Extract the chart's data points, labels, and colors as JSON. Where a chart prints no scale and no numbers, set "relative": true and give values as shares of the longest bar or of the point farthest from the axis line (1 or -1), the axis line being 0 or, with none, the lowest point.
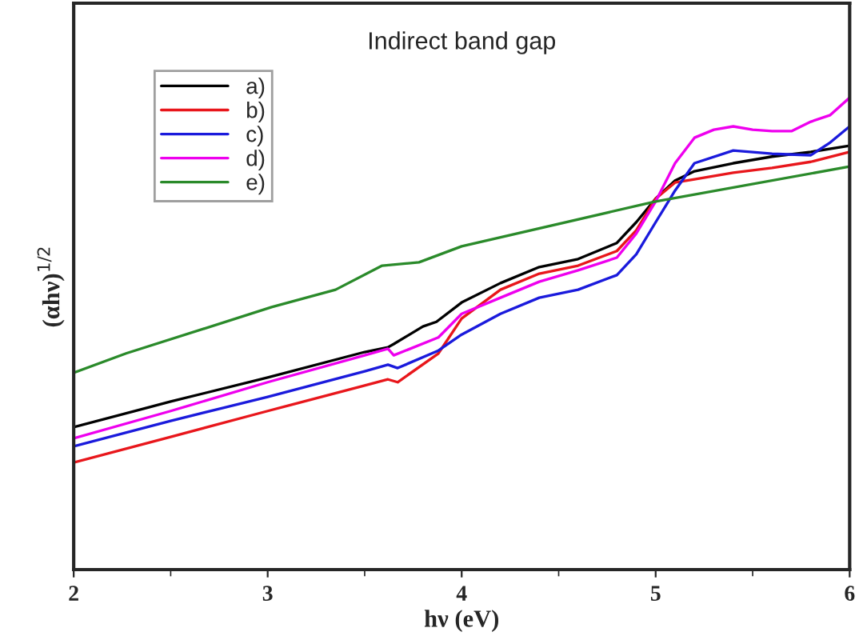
{
  "chart_data": {
    "type": "line",
    "title": "Indirect band gap",
    "xlabel": "hν (eV)",
    "ylabel": "(αhν)$^{1/2}$",
    "relative": true,
    "xlim": [
      2,
      6
    ],
    "xticks": [
      2,
      3,
      4,
      5,
      6
    ],
    "legend": "top left",
    "grid": false,
    "marker": "none",
    "line_style": "solid",
    "series": [
      {
        "name": "a)",
        "color": "#000000",
        "x": [
          2,
          2.5,
          3,
          3.5,
          3.62,
          3.65,
          3.8,
          3.87,
          4,
          4.2,
          4.4,
          4.6,
          4.8,
          4.9,
          5,
          5.1,
          5.2,
          5.4,
          5.6,
          5.8,
          6
        ],
        "values": [
          0.302,
          0.356,
          0.407,
          0.461,
          0.471,
          0.478,
          0.515,
          0.525,
          0.566,
          0.607,
          0.641,
          0.658,
          0.692,
          0.736,
          0.786,
          0.824,
          0.844,
          0.861,
          0.875,
          0.885,
          0.898
        ]
      },
      {
        "name": "b)",
        "color": "#e8161b",
        "x": [
          2,
          2.5,
          3,
          3.5,
          3.62,
          3.67,
          3.88,
          4,
          4.2,
          4.4,
          4.6,
          4.8,
          4.9,
          5,
          5.1,
          5.2,
          5.4,
          5.6,
          5.8,
          6
        ],
        "values": [
          0.227,
          0.281,
          0.336,
          0.39,
          0.403,
          0.397,
          0.458,
          0.532,
          0.593,
          0.627,
          0.644,
          0.675,
          0.719,
          0.786,
          0.82,
          0.827,
          0.841,
          0.851,
          0.864,
          0.885
        ]
      },
      {
        "name": "c)",
        "color": "#1a1adc",
        "x": [
          2,
          2.5,
          3,
          3.5,
          3.62,
          3.67,
          3.88,
          4,
          4.2,
          4.4,
          4.6,
          4.8,
          4.9,
          5,
          5.1,
          5.2,
          5.4,
          5.6,
          5.8,
          5.9,
          6
        ],
        "values": [
          0.261,
          0.315,
          0.366,
          0.42,
          0.434,
          0.427,
          0.464,
          0.498,
          0.542,
          0.576,
          0.593,
          0.624,
          0.668,
          0.736,
          0.803,
          0.861,
          0.888,
          0.881,
          0.878,
          0.905,
          0.939
        ]
      },
      {
        "name": "d)",
        "color": "#ee00ee",
        "x": [
          2,
          2.5,
          3,
          3.5,
          3.62,
          3.65,
          3.88,
          4,
          4.2,
          4.4,
          4.6,
          4.8,
          4.9,
          5,
          5.1,
          5.2,
          5.3,
          5.4,
          5.5,
          5.6,
          5.7,
          5.8,
          5.9,
          6
        ],
        "values": [
          0.278,
          0.336,
          0.397,
          0.454,
          0.468,
          0.454,
          0.492,
          0.542,
          0.576,
          0.61,
          0.634,
          0.661,
          0.712,
          0.78,
          0.861,
          0.915,
          0.932,
          0.939,
          0.932,
          0.929,
          0.929,
          0.949,
          0.963,
          1
        ]
      },
      {
        "name": "e)",
        "color": "#2a8a2a",
        "x": [
          2,
          2.27,
          3.02,
          3.35,
          3.59,
          3.78,
          4,
          5,
          6
        ],
        "values": [
          0.417,
          0.458,
          0.556,
          0.593,
          0.644,
          0.651,
          0.685,
          0.78,
          0.854
        ]
      }
    ]
  }
}
